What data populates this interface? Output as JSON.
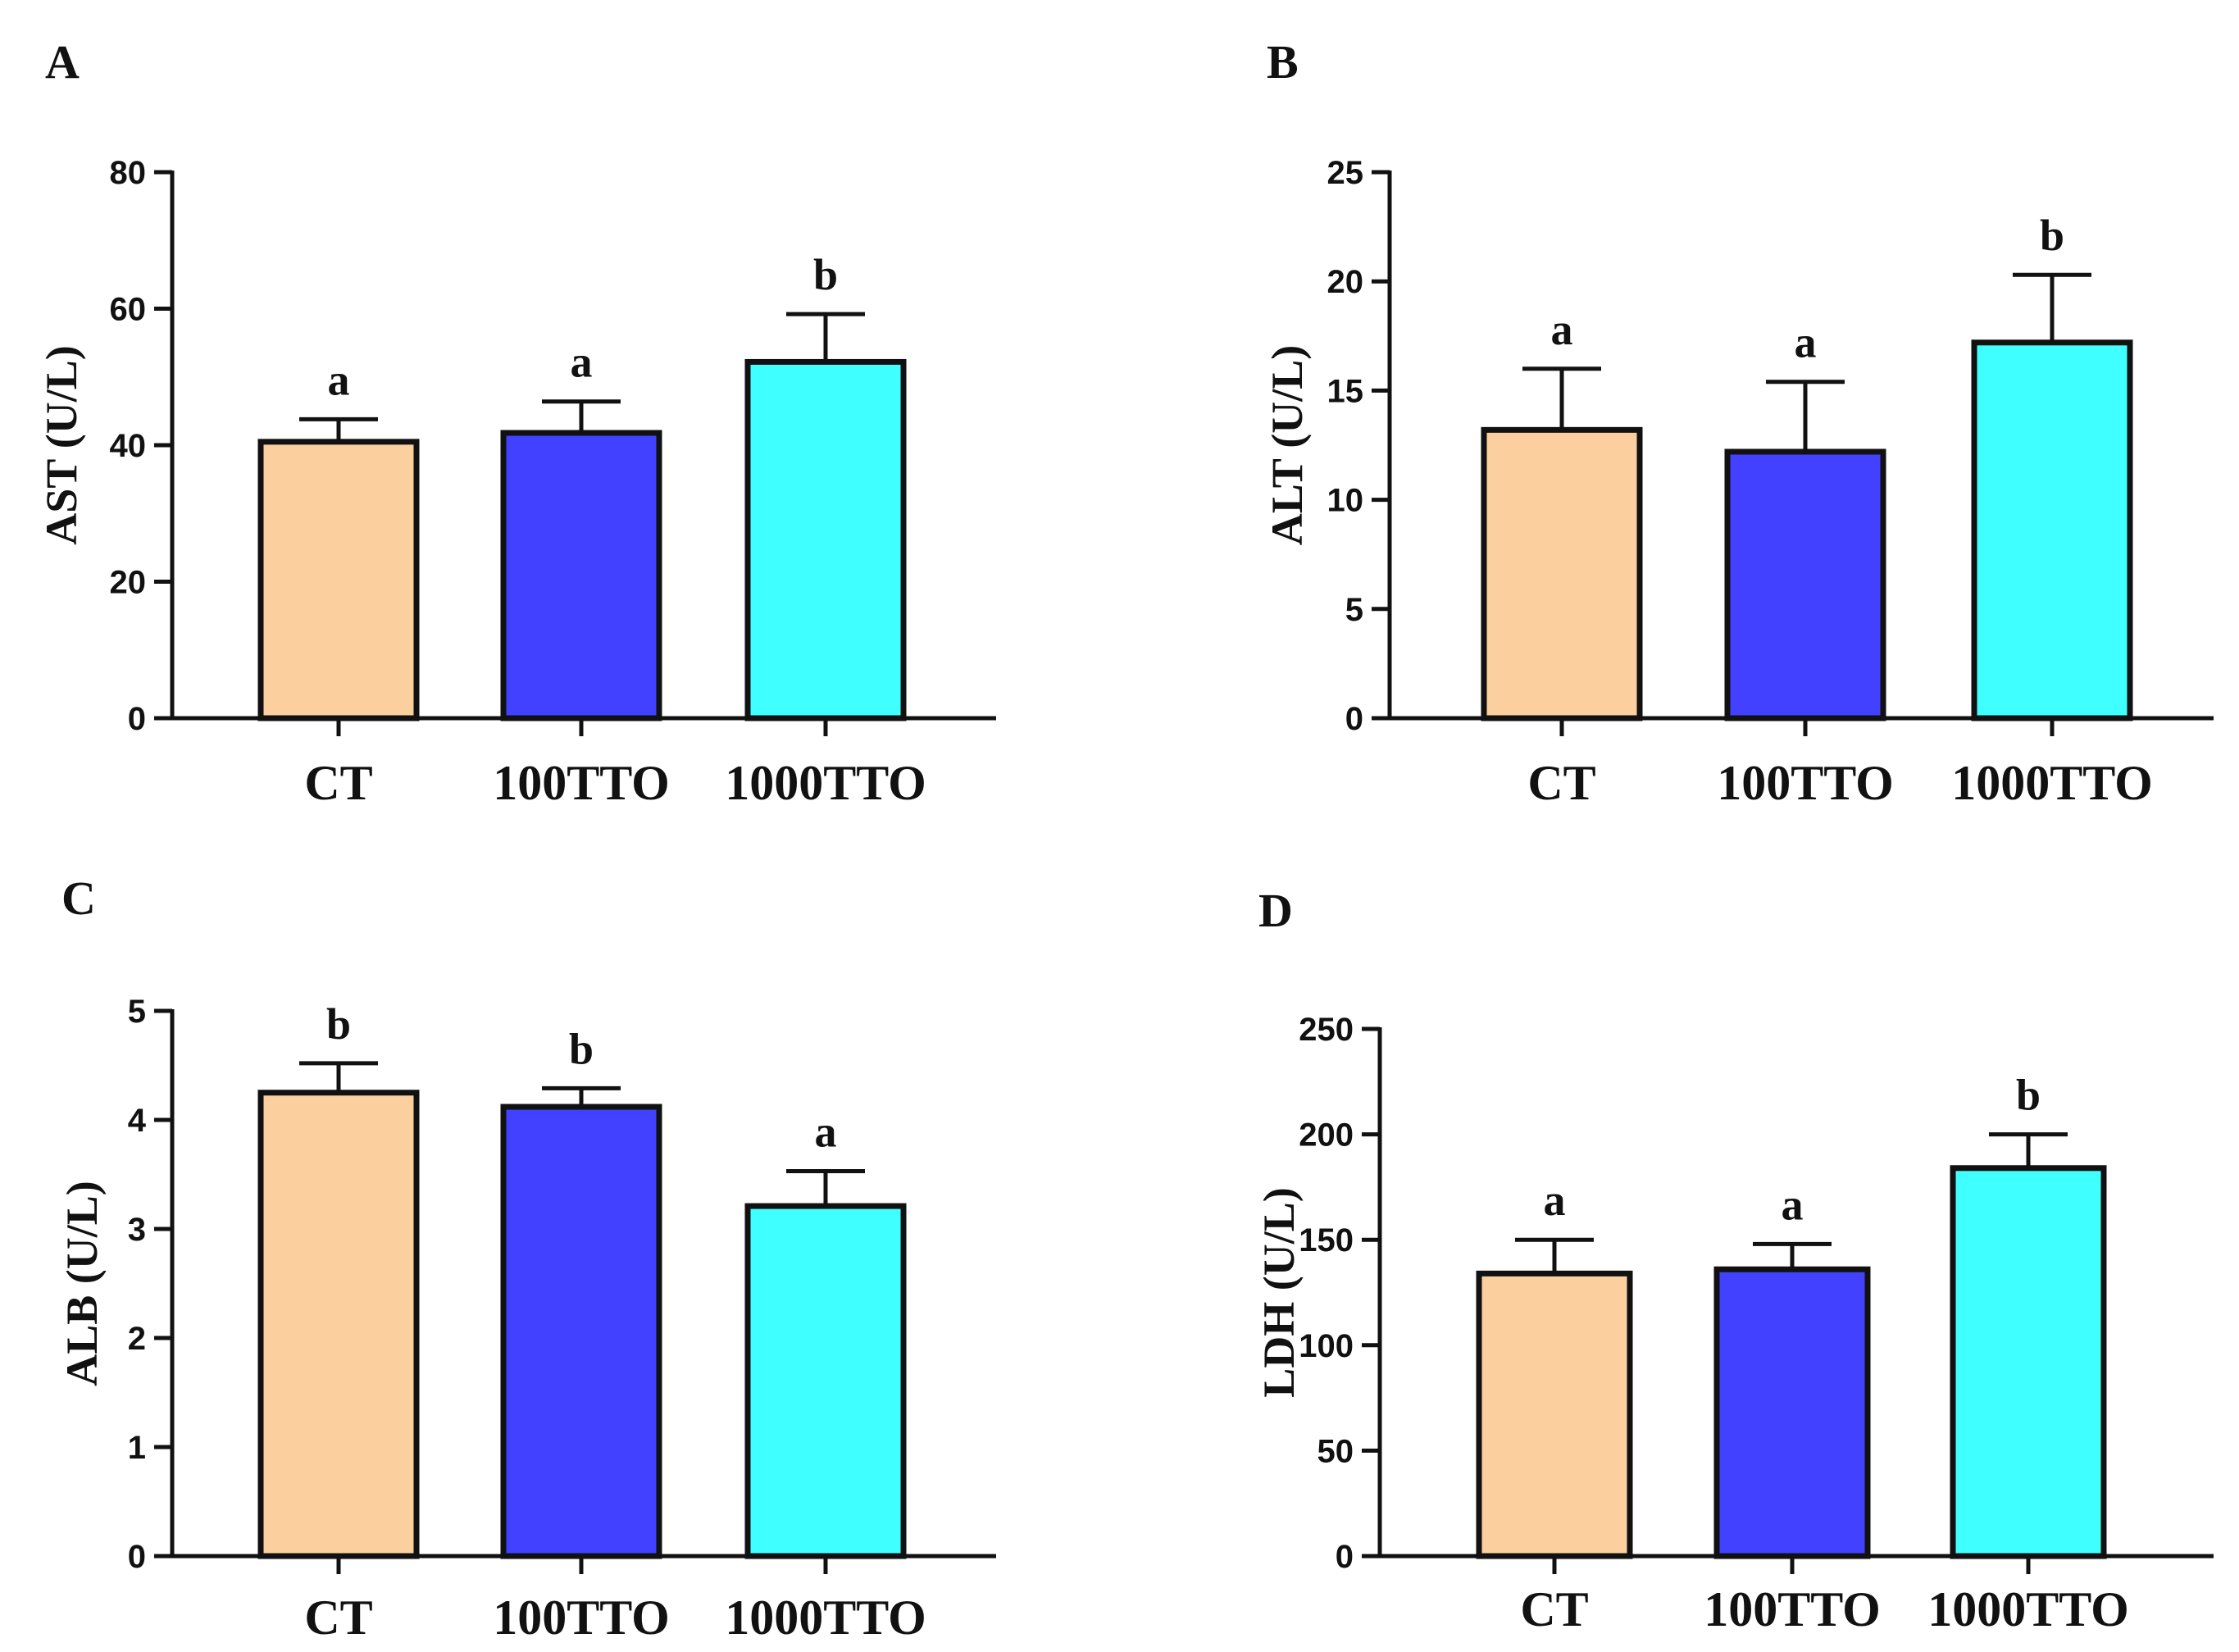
{
  "chart_data": [
    {
      "panel": "A",
      "type": "bar",
      "categories": [
        "CT",
        "100TTO",
        "1000TTO"
      ],
      "values": [
        40.5,
        41.8,
        52.2
      ],
      "errors": [
        3.3,
        4.6,
        7.0
      ],
      "significance": [
        "a",
        "a",
        "b"
      ],
      "colors": [
        "#FCCF9F",
        "#4141FF",
        "#40FFFF"
      ],
      "ylabel": "AST (U/L)",
      "xlabel": "",
      "ylim": [
        0,
        80
      ],
      "yticks": [
        0,
        20,
        40,
        60,
        80
      ]
    },
    {
      "panel": "B",
      "type": "bar",
      "categories": [
        "CT",
        "100TTO",
        "1000TTO"
      ],
      "values": [
        13.2,
        12.2,
        17.2
      ],
      "errors": [
        2.8,
        3.2,
        3.1
      ],
      "significance": [
        "a",
        "a",
        "b"
      ],
      "colors": [
        "#FCCF9F",
        "#4141FF",
        "#40FFFF"
      ],
      "ylabel": "ALT (U/L)",
      "xlabel": "",
      "ylim": [
        0,
        25
      ],
      "yticks": [
        0,
        5,
        10,
        15,
        20,
        25
      ]
    },
    {
      "panel": "C",
      "type": "bar",
      "categories": [
        "CT",
        "100TTO",
        "1000TTO"
      ],
      "values": [
        4.25,
        4.12,
        3.21
      ],
      "errors": [
        0.27,
        0.17,
        0.32
      ],
      "significance": [
        "b",
        "b",
        "a"
      ],
      "colors": [
        "#FCCF9F",
        "#4141FF",
        "#40FFFF"
      ],
      "ylabel": "ALB (U/L)",
      "xlabel": "",
      "ylim": [
        0,
        5
      ],
      "yticks": [
        0,
        1,
        2,
        3,
        4,
        5
      ]
    },
    {
      "panel": "D",
      "type": "bar",
      "categories": [
        "CT",
        "100TTO",
        "1000TTO"
      ],
      "values": [
        134,
        136,
        184
      ],
      "errors": [
        16,
        12,
        16
      ],
      "significance": [
        "a",
        "a",
        "b"
      ],
      "colors": [
        "#FCCF9F",
        "#4141FF",
        "#40FFFF"
      ],
      "ylabel": "LDH (U/L)",
      "xlabel": "",
      "ylim": [
        0,
        250
      ],
      "yticks": [
        0,
        50,
        100,
        150,
        200,
        250
      ]
    }
  ]
}
